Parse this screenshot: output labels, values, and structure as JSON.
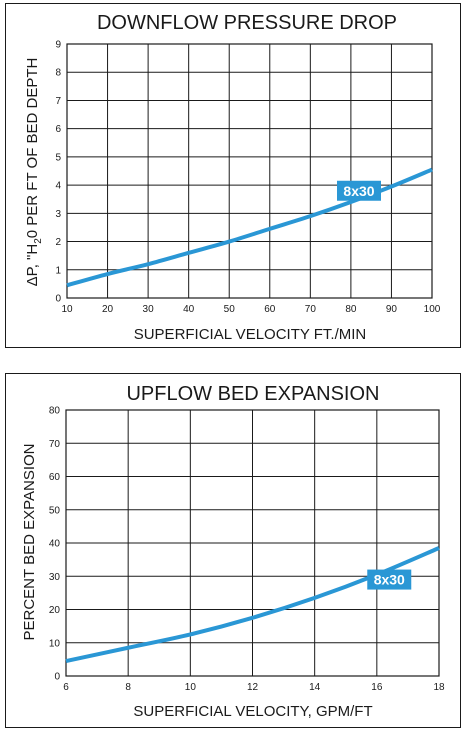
{
  "chart_data": [
    {
      "type": "line",
      "title": "DOWNFLOW PRESSURE DROP",
      "xlabel": "SUPERFICIAL VELOCITY FT./MIN",
      "ylabel_parts": {
        "a": "ΔP, \"H",
        "sub": "2",
        "b": "0 PER FT OF BED DEPTH"
      },
      "xlim": [
        10,
        100
      ],
      "ylim": [
        0,
        9
      ],
      "xticks": [
        "10",
        "20",
        "30",
        "40",
        "50",
        "60",
        "70",
        "80",
        "90",
        "100"
      ],
      "yticks": [
        "0",
        "1",
        "2",
        "3",
        "4",
        "5",
        "6",
        "7",
        "8",
        "9"
      ],
      "grid": true,
      "color": "#2a97d5",
      "series": [
        {
          "name": "8x30",
          "x": [
            10,
            20,
            30,
            40,
            50,
            60,
            70,
            80,
            90,
            100
          ],
          "y": [
            0.45,
            0.85,
            1.2,
            1.6,
            2.0,
            2.45,
            2.9,
            3.4,
            3.95,
            4.55
          ]
        }
      ]
    },
    {
      "type": "line",
      "title": "UPFLOW BED EXPANSION",
      "xlabel": "SUPERFICIAL VELOCITY, GPM/FT",
      "ylabel": "PERCENT BED EXPANSION",
      "xlim": [
        6,
        18
      ],
      "ylim": [
        0,
        80
      ],
      "xticks": [
        "6",
        "8",
        "10",
        "12",
        "14",
        "16",
        "18"
      ],
      "yticks": [
        "0",
        "10",
        "20",
        "30",
        "40",
        "50",
        "60",
        "70",
        "80"
      ],
      "grid": true,
      "color": "#2a97d5",
      "series": [
        {
          "name": "8x30",
          "x": [
            6,
            8,
            10,
            12,
            14,
            16,
            18
          ],
          "y": [
            4.5,
            8.5,
            12.5,
            17.5,
            23.5,
            30.5,
            38.5
          ]
        }
      ]
    }
  ]
}
